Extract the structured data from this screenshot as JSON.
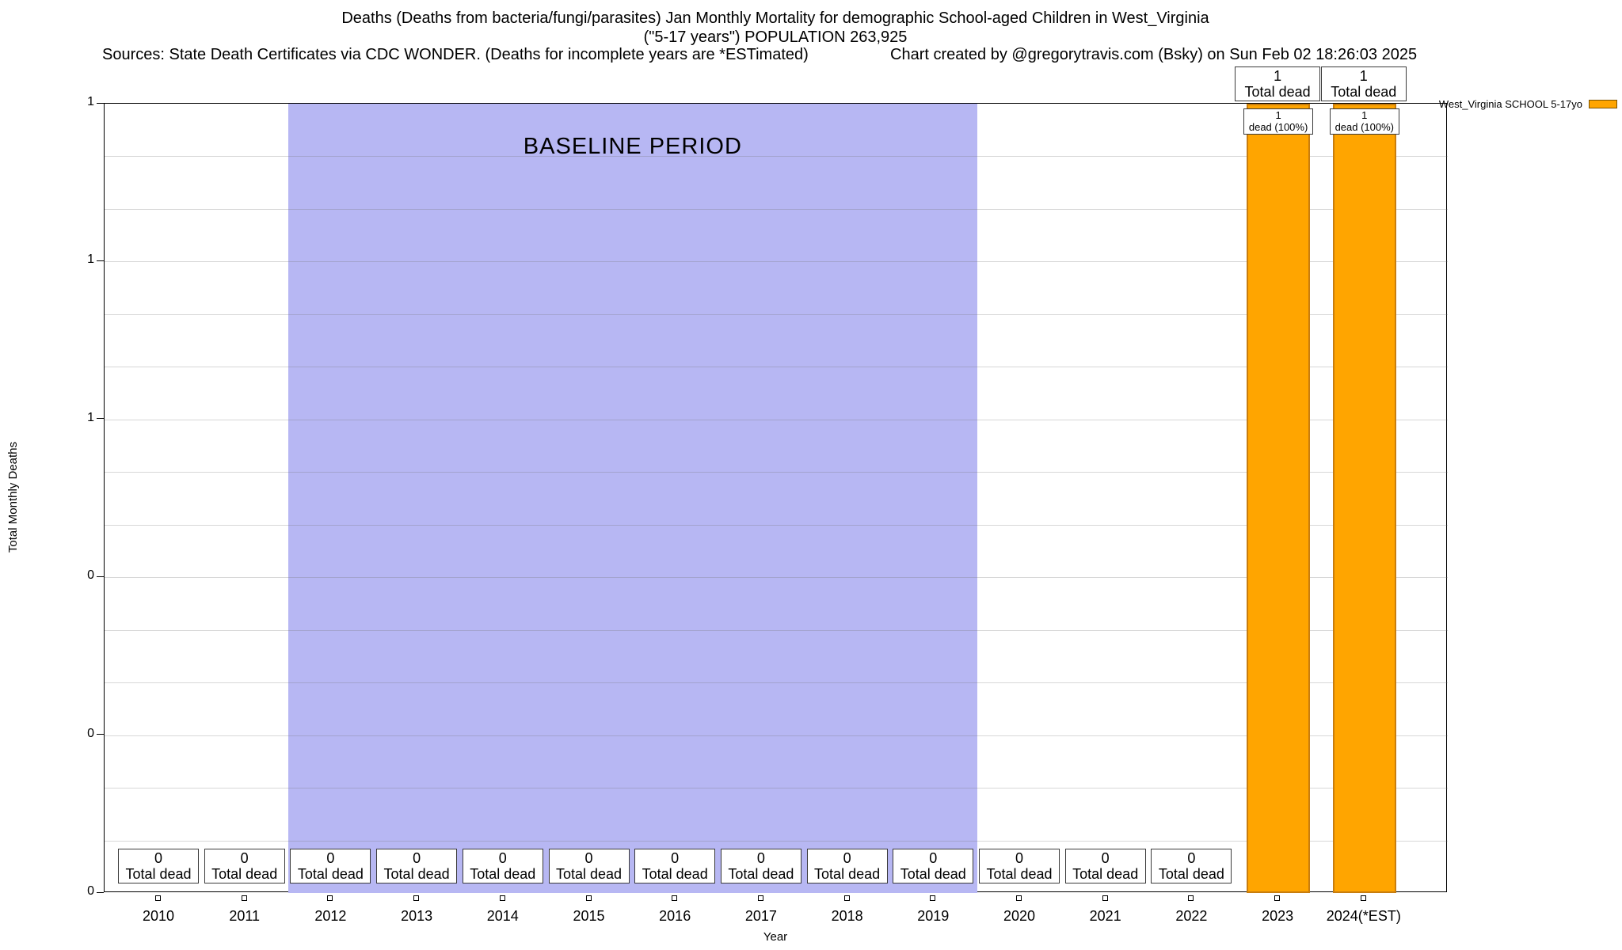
{
  "header": {
    "title": "Deaths (Deaths from bacteria/fungi/parasites) Jan Monthly Mortality for demographic School-aged Children in West_Virginia",
    "subtitle": "(\"5-17 years\") POPULATION 263,925",
    "sources": "Sources: State Death Certificates via CDC WONDER. (Deaths for incomplete years are *ESTimated)",
    "credit": "Chart created by @gregorytravis.com (Bsky) on Sun Feb 02 18:26:03 2025"
  },
  "legend": {
    "label": "West_Virginia SCHOOL 5-17yo",
    "color": "#FFA500"
  },
  "chart_data": {
    "type": "bar",
    "title": "Deaths (Deaths from bacteria/fungi/parasites) Jan Monthly Mortality for demographic School-aged Children in West_Virginia",
    "subtitle": "(\"5-17 years\") POPULATION 263,925",
    "xlabel": "Year",
    "ylabel": "Total Monthly Deaths",
    "ylim": [
      0,
      1
    ],
    "grid": true,
    "legend_position": "top-right",
    "categories": [
      "2010",
      "2011",
      "2012",
      "2013",
      "2014",
      "2015",
      "2016",
      "2017",
      "2018",
      "2019",
      "2020",
      "2021",
      "2022",
      "2023",
      "2024(*EST)"
    ],
    "series": [
      {
        "name": "West_Virginia SCHOOL 5-17yo",
        "values": [
          0,
          0,
          0,
          0,
          0,
          0,
          0,
          0,
          0,
          0,
          0,
          0,
          0,
          1,
          1
        ]
      }
    ],
    "bar_value_label": "Total dead",
    "in_bar_label": "dead (100%)",
    "baseline_band": {
      "label": "BASELINE PERIOD",
      "start_category": "2012",
      "end_category": "2019"
    },
    "yticks": [
      {
        "value": 0,
        "label": "0"
      },
      {
        "value": 0.2,
        "label": "0"
      },
      {
        "value": 0.4,
        "label": "0"
      },
      {
        "value": 0.6,
        "label": "1"
      },
      {
        "value": 0.8,
        "label": "1"
      },
      {
        "value": 1,
        "label": "1"
      }
    ],
    "minor_grid_divisions": 15,
    "colors": {
      "bar_fill": "#FFA500",
      "bar_border": "#C87D0E",
      "baseline_fill": "#B7B7F3",
      "grid_line": "rgba(110,110,110,0.28)",
      "box_border": "#3a3a3a"
    }
  }
}
